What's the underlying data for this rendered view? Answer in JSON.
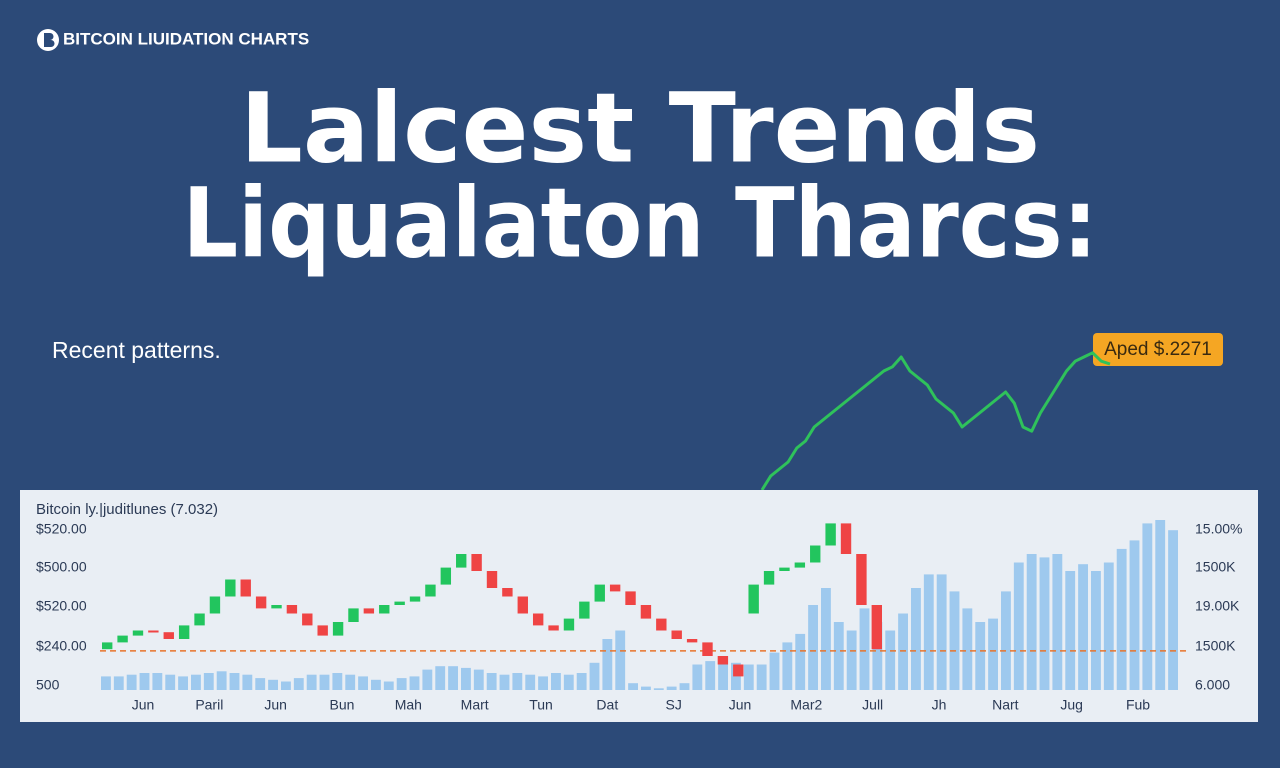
{
  "header": {
    "brand": "BITCOIN LIUIDATION CHARTS"
  },
  "hero": {
    "title_lines": [
      "Lalcest Trends",
      "Liqualaton Tharcs:"
    ],
    "subtitle": "Recent patterns.",
    "badge": "Aped $.2271"
  },
  "chart_data": [
    {
      "type": "line",
      "color": "#2fc25b",
      "ylim": [
        0,
        100
      ],
      "values": [
        0,
        10,
        15,
        20,
        30,
        35,
        45,
        50,
        55,
        60,
        65,
        70,
        75,
        80,
        85,
        88,
        95,
        85,
        80,
        75,
        65,
        60,
        55,
        45,
        50,
        55,
        60,
        65,
        70,
        62,
        45,
        42,
        55,
        65,
        75,
        85,
        92,
        95,
        98,
        92,
        90
      ]
    },
    {
      "type": "candlestick",
      "title": "Bitcoin ly.|juditlunes (7.032)",
      "y_labels": [
        "$520.00",
        "$500.00",
        "$520.00",
        "$240.00",
        "500"
      ],
      "y2_labels": [
        "15.00%",
        "1500K",
        "19.00K",
        "1500K",
        "6.000"
      ],
      "categories": [
        "Jun",
        "Paril",
        "Jun",
        "Bun",
        "Mah",
        "Mart",
        "Tun",
        "Dat",
        "SJ",
        "Jun",
        "Mar2",
        "Jull",
        "Jh",
        "Nart",
        "Jug",
        "Fub"
      ],
      "ylim": [
        0,
        100
      ],
      "up_color": "#22c55e",
      "down_color": "#ef4444",
      "open": [
        24,
        28,
        32,
        35,
        34,
        30,
        38,
        45,
        55,
        65,
        55,
        48,
        50,
        45,
        38,
        32,
        40,
        48,
        45,
        50,
        52,
        55,
        62,
        72,
        80,
        70,
        60,
        55,
        45,
        38,
        35,
        42,
        52,
        62,
        58,
        50,
        42,
        35,
        30,
        28,
        20,
        15,
        45,
        62,
        70,
        72,
        75,
        85,
        98,
        80,
        50
      ],
      "close": [
        28,
        32,
        35,
        34,
        30,
        38,
        45,
        55,
        65,
        55,
        48,
        50,
        45,
        38,
        32,
        40,
        48,
        45,
        50,
        52,
        55,
        62,
        72,
        80,
        70,
        60,
        55,
        45,
        38,
        35,
        42,
        52,
        62,
        58,
        50,
        42,
        35,
        30,
        28,
        20,
        15,
        8,
        62,
        70,
        72,
        75,
        85,
        98,
        80,
        50,
        24
      ],
      "hline": 23,
      "hline_color": "#e8742c",
      "volume": {
        "color": "#9ec9ee",
        "y2lim": [
          0,
          100
        ],
        "values": [
          8,
          8,
          9,
          10,
          10,
          9,
          8,
          9,
          10,
          11,
          10,
          9,
          7,
          6,
          5,
          7,
          9,
          9,
          10,
          9,
          8,
          6,
          5,
          7,
          8,
          12,
          14,
          14,
          13,
          12,
          10,
          9,
          10,
          9,
          8,
          10,
          9,
          10,
          16,
          30,
          35,
          4,
          2,
          1,
          2,
          4,
          15,
          17,
          17,
          16,
          15,
          15,
          22,
          28,
          33,
          50,
          60,
          40,
          35,
          48,
          40,
          35,
          45,
          60,
          68,
          68,
          58,
          48,
          40,
          42,
          58,
          75,
          80,
          78,
          80,
          70,
          74,
          70,
          75,
          83,
          88,
          98,
          100,
          94
        ]
      }
    }
  ]
}
